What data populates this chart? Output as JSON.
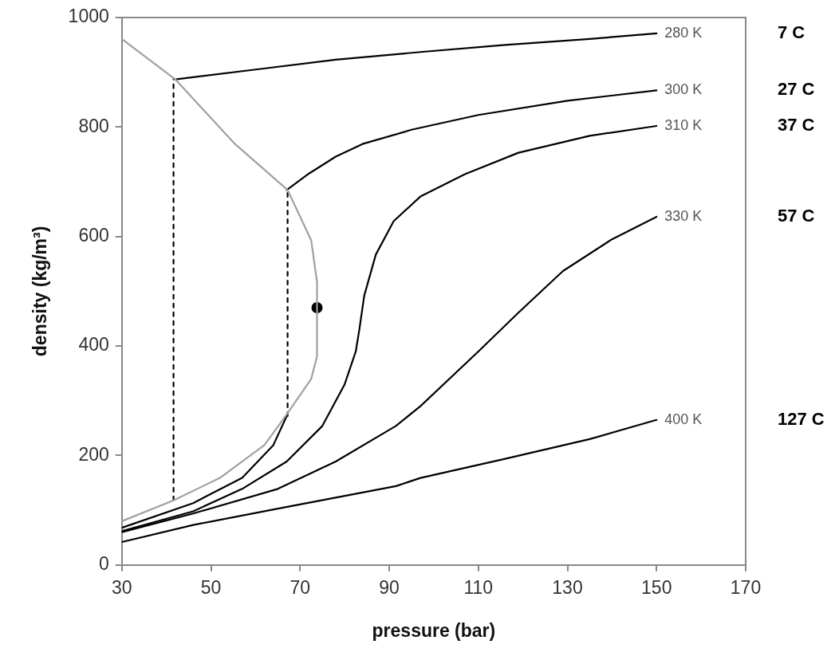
{
  "chart_data": {
    "type": "line",
    "xlabel": "pressure (bar)",
    "ylabel": "density (kg/m³)",
    "xlim": [
      30,
      170
    ],
    "xticks": [
      30,
      50,
      70,
      90,
      110,
      130,
      150,
      170
    ],
    "ylim": [
      0,
      1000
    ],
    "yticks": [
      0,
      200,
      400,
      600,
      800,
      1000
    ],
    "grid": false,
    "legend": false,
    "marker": "none",
    "series": [
      {
        "color": "#a0a0a0",
        "x": [
          30,
          41.6,
          52,
          62,
          67,
          72.5,
          73.8,
          73.8,
          72.5,
          67.2,
          55.4,
          42,
          30
        ],
        "values": [
          80,
          118,
          159,
          219,
          275,
          340,
          381,
          517,
          593,
          685,
          769,
          887,
          961
        ]
      },
      {
        "name": "280 K",
        "color": "#000000",
        "x": [
          42,
          60,
          78,
          97,
          116,
          135,
          150
        ],
        "values": [
          887,
          905,
          923,
          937,
          950,
          961,
          971
        ]
      },
      {
        "color": "#000000",
        "x": [
          30,
          46,
          57,
          64,
          67
        ],
        "values": [
          68,
          113,
          159,
          219,
          272
        ]
      },
      {
        "name": "300 K",
        "color": "#000000",
        "x": [
          67,
          72,
          78,
          84,
          95,
          110,
          130,
          150
        ],
        "values": [
          685,
          715,
          746,
          769,
          795,
          822,
          848,
          867
        ]
      },
      {
        "name": "310 K",
        "color": "#000000",
        "x": [
          30,
          46,
          57,
          67,
          75,
          80,
          82.5,
          83.3,
          84.4,
          87,
          91,
          97,
          107,
          119,
          135,
          150
        ],
        "values": [
          62,
          98,
          139,
          189,
          254,
          330,
          390,
          430,
          492,
          567,
          628,
          673,
          714,
          753,
          784,
          802
        ]
      },
      {
        "name": "330 K",
        "color": "#000000",
        "x": [
          30,
          46,
          65,
          78,
          91.5,
          97,
          110,
          119,
          129,
          140,
          150
        ],
        "values": [
          60,
          94,
          139,
          189,
          254,
          290,
          390,
          461,
          537,
          595,
          636
        ]
      },
      {
        "name": "400 K",
        "color": "#000000",
        "x": [
          30,
          46,
          65,
          91.5,
          97,
          116,
          135,
          150
        ],
        "values": [
          42,
          73,
          103,
          144,
          159,
          194,
          230,
          265
        ]
      },
      {
        "color": "#000000",
        "line_style": "dashed",
        "x": [
          41.6,
          41.6
        ],
        "values": [
          118,
          887
        ]
      },
      {
        "color": "#000000",
        "line_style": "dashed",
        "x": [
          67.2,
          67.2
        ],
        "values": [
          272,
          685
        ]
      },
      {
        "type": "scatter",
        "marker": "circle",
        "color": "#000000",
        "x": [
          73.8
        ],
        "values": [
          470
        ]
      }
    ],
    "annotations": [
      "7 C",
      "27 C",
      "37 C",
      "57 C",
      "127 C"
    ]
  }
}
